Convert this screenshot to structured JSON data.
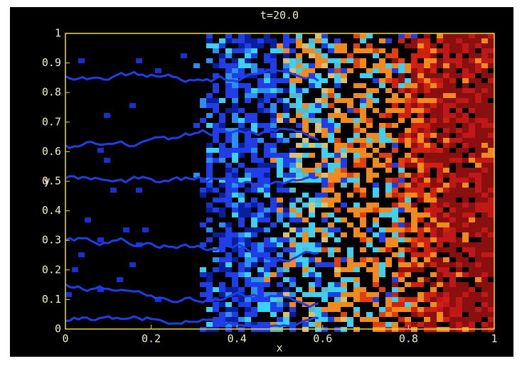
{
  "chart_data": {
    "type": "image",
    "title": "t=20.0",
    "xlabel": "x",
    "ylabel": "y",
    "xlim": [
      0,
      1
    ],
    "ylim": [
      0,
      1
    ],
    "xticks": [
      0,
      0.2,
      0.4,
      0.6,
      0.8,
      1
    ],
    "yticks": [
      0,
      0.1,
      0.2,
      0.3,
      0.4,
      0.5,
      0.6,
      0.7,
      0.8,
      0.9,
      1
    ],
    "axis_color": "#e8d84a"
  }
}
